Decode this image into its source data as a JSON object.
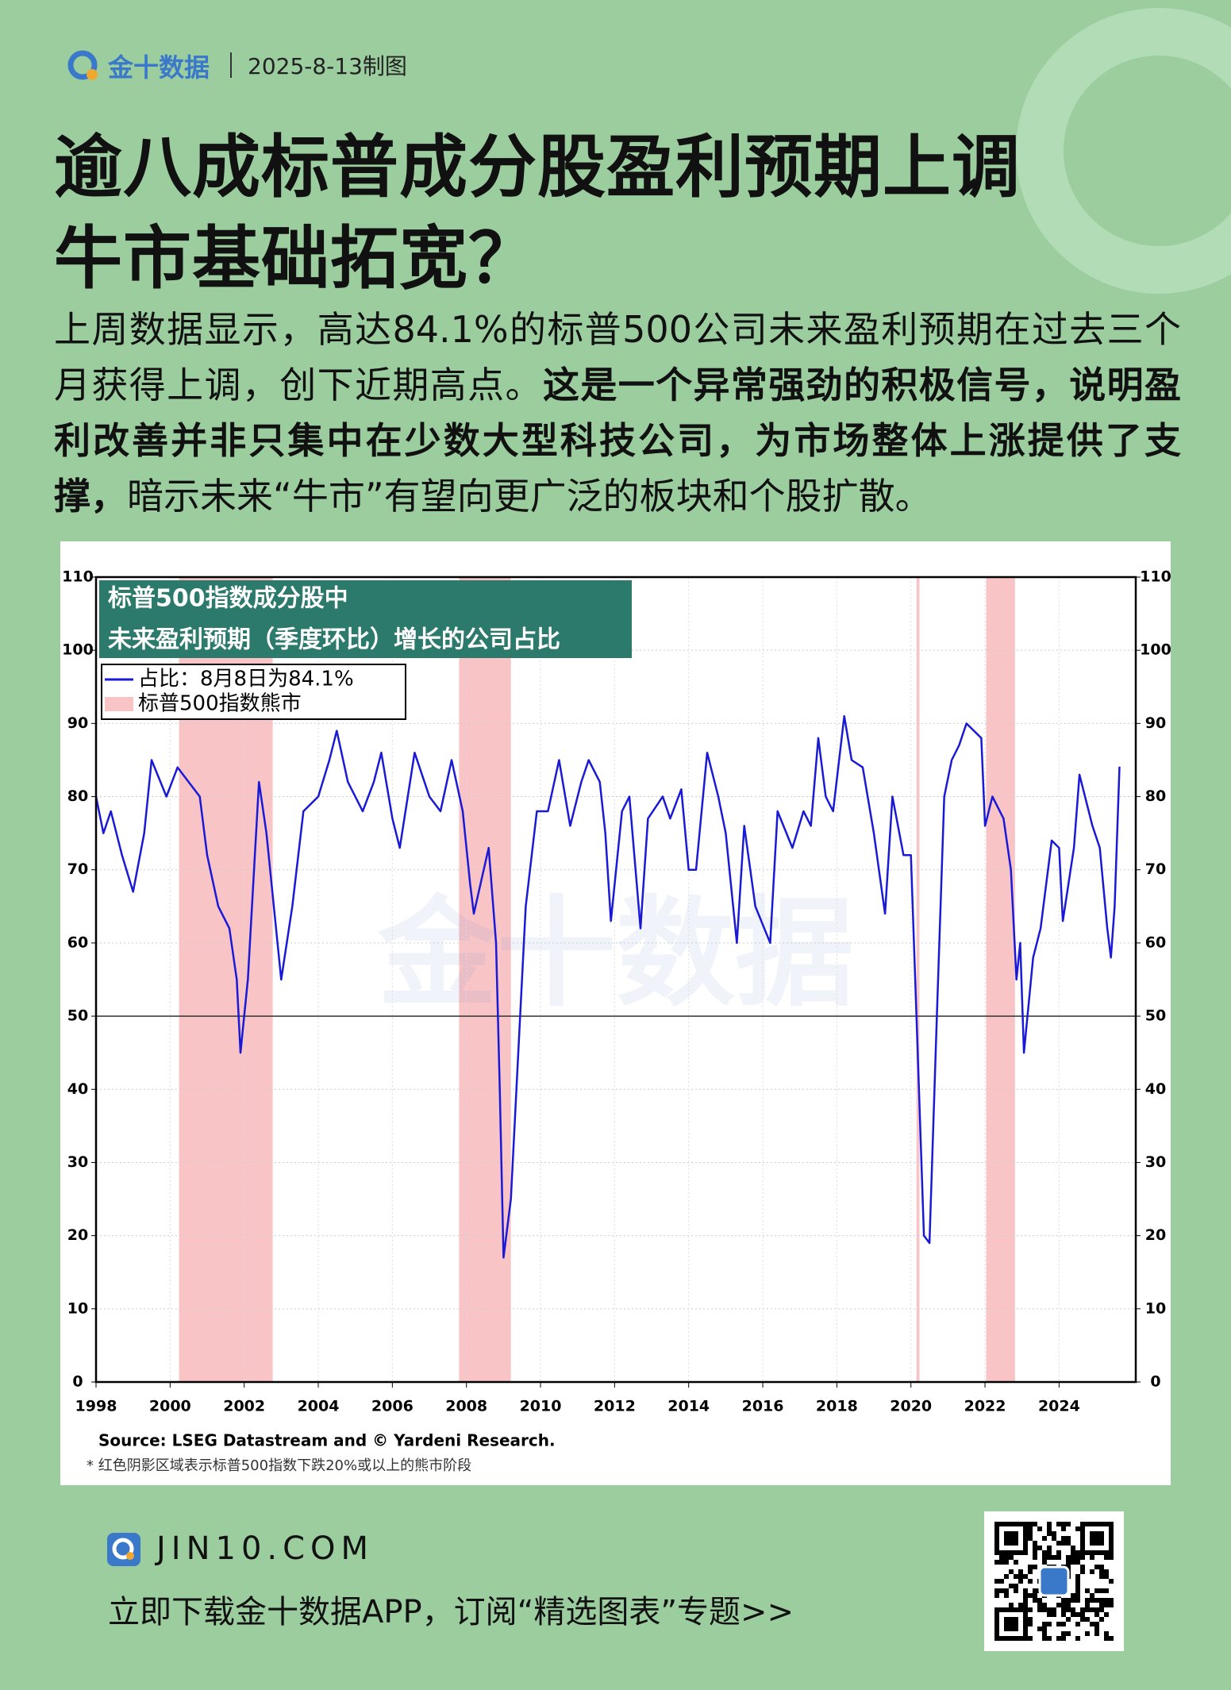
{
  "header": {
    "brand": "金十数据",
    "date": "2025-8-13制图"
  },
  "title_lines": [
    "逾八成标普成分股盈利预期上调",
    "牛市基础拓宽？"
  ],
  "body": [
    {
      "text": "上周数据显示，高达84.1%的标普500公司未来盈利预期在过去三个月获得上调，创下近期高点。",
      "bold": false
    },
    {
      "text": "这是一个异常强劲的积极信号，说明盈利改善并非只集中在少数大型科技公司，为市场整体上涨提供了支撑，",
      "bold": true
    },
    {
      "text": "暗示未来“牛市”有望向更广泛的板块和个股扩散。",
      "bold": false
    }
  ],
  "chart_data": {
    "type": "line",
    "title_lines": [
      "标普500指数成分股中",
      "未来盈利预期（季度环比）增长的公司占比"
    ],
    "watermark": "金十数据",
    "x": [
      1998.0,
      1998.2,
      1998.4,
      1998.7,
      1999.0,
      1999.3,
      1999.5,
      1999.9,
      2000.2,
      2000.5,
      2000.8,
      2001.0,
      2001.3,
      2001.6,
      2001.8,
      2001.9,
      2002.1,
      2002.4,
      2002.6,
      2002.8,
      2003.0,
      2003.3,
      2003.6,
      2004.0,
      2004.3,
      2004.5,
      2004.8,
      2005.2,
      2005.5,
      2005.7,
      2006.0,
      2006.2,
      2006.6,
      2007.0,
      2007.3,
      2007.6,
      2007.9,
      2008.1,
      2008.2,
      2008.6,
      2008.8,
      2008.9,
      2009.0,
      2009.2,
      2009.4,
      2009.6,
      2009.9,
      2010.2,
      2010.5,
      2010.8,
      2011.1,
      2011.3,
      2011.6,
      2011.75,
      2011.9,
      2012.2,
      2012.4,
      2012.7,
      2012.9,
      2013.3,
      2013.5,
      2013.8,
      2014.0,
      2014.2,
      2014.5,
      2014.8,
      2015.0,
      2015.3,
      2015.5,
      2015.8,
      2016.2,
      2016.4,
      2016.8,
      2017.1,
      2017.3,
      2017.5,
      2017.7,
      2017.9,
      2018.2,
      2018.4,
      2018.7,
      2019.0,
      2019.3,
      2019.5,
      2019.8,
      2020.0,
      2020.15,
      2020.35,
      2020.5,
      2020.7,
      2020.9,
      2021.1,
      2021.3,
      2021.5,
      2021.9,
      2022.0,
      2022.2,
      2022.5,
      2022.7,
      2022.85,
      2022.95,
      2023.05,
      2023.3,
      2023.5,
      2023.8,
      2024.0,
      2024.1,
      2024.4,
      2024.55,
      2024.9,
      2025.1,
      2025.3,
      2025.4,
      2025.5,
      2025.63
    ],
    "series": [
      {
        "name": "占比：8月8日为84.1%",
        "color": "#1a1ad6",
        "values": [
          80,
          75,
          78,
          72,
          67,
          75,
          85,
          80,
          84,
          82,
          80,
          72,
          65,
          62,
          55,
          45,
          55,
          82,
          75,
          65,
          55,
          65,
          78,
          80,
          85,
          89,
          82,
          78,
          82,
          86,
          77,
          73,
          86,
          80,
          78,
          85,
          78,
          68,
          64,
          73,
          60,
          40,
          17,
          25,
          45,
          65,
          78,
          78,
          85,
          76,
          82,
          85,
          82,
          75,
          63,
          78,
          80,
          62,
          77,
          80,
          77,
          81,
          70,
          70,
          86,
          80,
          75,
          60,
          76,
          65,
          60,
          78,
          73,
          78,
          76,
          88,
          80,
          78,
          91,
          85,
          84,
          75,
          64,
          80,
          72,
          72,
          50,
          20,
          19,
          50,
          80,
          85,
          87,
          90,
          88,
          76,
          80,
          77,
          70,
          55,
          60,
          45,
          58,
          62,
          74,
          73,
          63,
          73,
          83,
          76,
          73,
          62,
          58,
          65,
          84.1
        ]
      }
    ],
    "bear_markets": {
      "name": "标普500指数熊市",
      "color": "#f8c4c6",
      "ranges": [
        [
          2000.24,
          2002.77
        ],
        [
          2007.8,
          2009.2
        ],
        [
          2020.15,
          2020.23
        ],
        [
          2022.03,
          2022.81
        ]
      ]
    },
    "hline": 50,
    "xlim": [
      1998,
      2026.07
    ],
    "xticks": [
      1998,
      2000,
      2002,
      2004,
      2006,
      2008,
      2010,
      2012,
      2014,
      2016,
      2018,
      2020,
      2022,
      2024
    ],
    "ylim": [
      0,
      110
    ],
    "yticks": [
      0,
      10,
      20,
      30,
      40,
      50,
      60,
      70,
      80,
      90,
      100,
      110
    ],
    "grid": true,
    "source": "Source: LSEG Datastream and © Yardeni Research.",
    "footnote": "* 红色阴影区域表示标普500指数下跌20%或以上的熊市阶段"
  },
  "footer": {
    "site": "JIN10.COM",
    "cta": "立即下载金十数据APP，订阅“精选图表”专题>>"
  }
}
